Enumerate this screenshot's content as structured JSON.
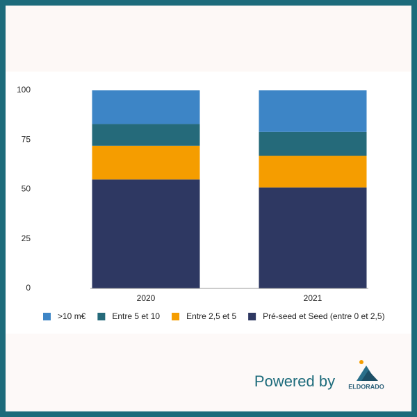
{
  "chart_data": {
    "type": "stacked_bar",
    "categories": [
      "2020",
      "2021"
    ],
    "series": [
      {
        "name": ">10 m€",
        "color": "#3d85c6",
        "values": [
          17,
          21
        ]
      },
      {
        "name": "Entre 5 et 10",
        "color": "#256a7a",
        "values": [
          11,
          12
        ]
      },
      {
        "name": "Entre 2,5 et 5",
        "color": "#f59d00",
        "values": [
          17,
          16
        ]
      },
      {
        "name": "Pré-seed et Seed (entre 0 et 2,5)",
        "color": "#2e3862",
        "values": [
          55,
          51
        ]
      }
    ],
    "ylim": [
      0,
      100
    ],
    "yticks": [
      0,
      25,
      50,
      75,
      100
    ],
    "grid": false,
    "legend": "bottom"
  },
  "footer": {
    "powered_by": "Powered by",
    "brand": "ELDORADO"
  }
}
